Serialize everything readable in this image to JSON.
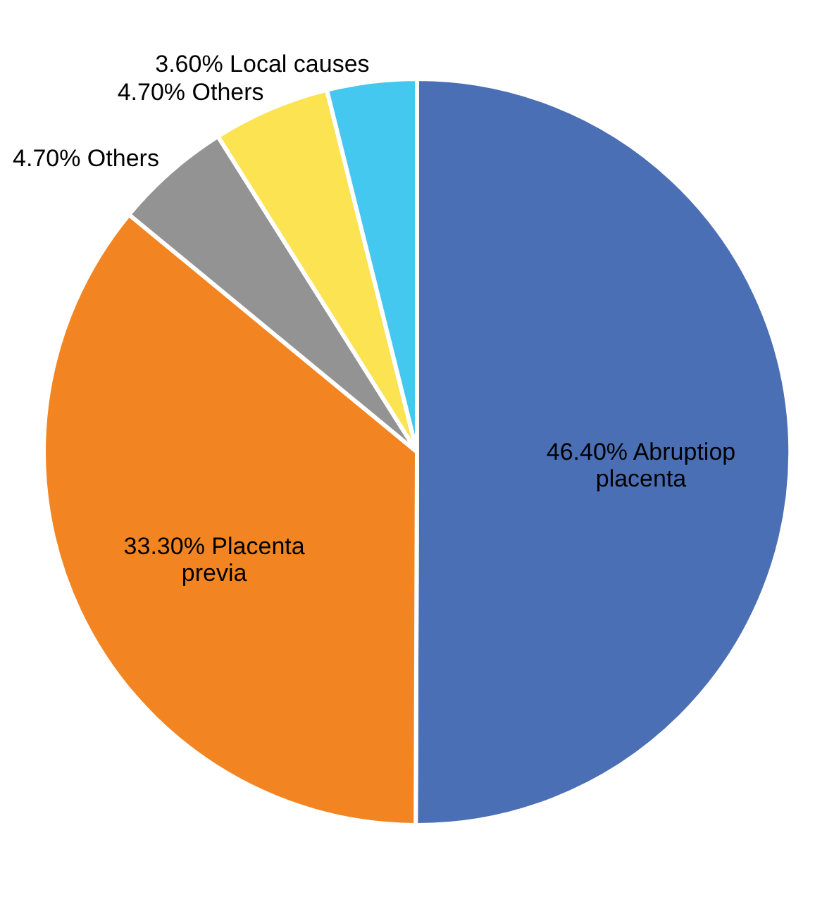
{
  "chart_data": {
    "type": "pie",
    "categories": [
      "Abruptiop placenta",
      "Placenta previa",
      "Others",
      "Others",
      "Local causes"
    ],
    "values": [
      46.4,
      33.3,
      4.7,
      4.7,
      3.6
    ],
    "value_labels": [
      "46.40%",
      "33.30%",
      "4.70%",
      "4.70%",
      "3.60%"
    ],
    "colors": [
      "#4a6fb5",
      "#f28522",
      "#939393",
      "#fbe352",
      "#45c8f0"
    ],
    "legend": false
  }
}
